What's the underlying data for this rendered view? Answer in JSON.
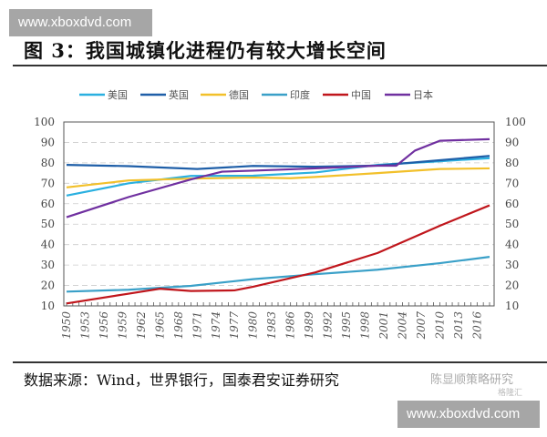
{
  "watermark_top": "www.xboxdvd.com",
  "watermark_bottom": "www.xboxdvd.com",
  "title": "图 3：我国城镇化进程仍有较大增长空间",
  "source": "数据来源：Wind，世界银行，国泰君安证券研究",
  "brand": "陈显顺策略研究",
  "brand2": "格隆汇",
  "chart_data": {
    "type": "line",
    "title": "",
    "xlabel": "",
    "ylabel": "",
    "ylim": [
      10,
      100
    ],
    "yticks": [
      10,
      20,
      30,
      40,
      50,
      60,
      70,
      80,
      90,
      100
    ],
    "xticks": [
      1950,
      1953,
      1956,
      1959,
      1962,
      1965,
      1968,
      1971,
      1974,
      1977,
      1980,
      1983,
      1986,
      1989,
      1992,
      1995,
      1998,
      2001,
      2004,
      2007,
      2010,
      2013,
      2016
    ],
    "xlim": [
      1950,
      2018
    ],
    "grid": "horizontal dashed",
    "legend": "top",
    "dual_y_axis": true,
    "series": [
      {
        "name": "美国",
        "color": "#2ab0e0",
        "x": [
          1950,
          1960,
          1970,
          1980,
          1990,
          2000,
          2010,
          2018
        ],
        "y": [
          64,
          70,
          73.6,
          73.7,
          75.3,
          79,
          80.8,
          82.3
        ]
      },
      {
        "name": "英国",
        "color": "#1f5fa8",
        "x": [
          1950,
          1960,
          1971,
          1980,
          1990,
          2000,
          2010,
          2018
        ],
        "y": [
          79,
          78.4,
          77,
          78.5,
          78.1,
          78.7,
          81.3,
          83.4
        ]
      },
      {
        "name": "德国",
        "color": "#f2c02a",
        "x": [
          1950,
          1960,
          1970,
          1980,
          1986,
          1990,
          2000,
          2010,
          2018
        ],
        "y": [
          68,
          71.4,
          72.3,
          72.8,
          72.5,
          73.1,
          75,
          77,
          77.3
        ]
      },
      {
        "name": "印度",
        "color": "#3aa0c8",
        "x": [
          1950,
          1960,
          1970,
          1980,
          1990,
          2000,
          2010,
          2018
        ],
        "y": [
          17,
          17.9,
          19.8,
          23.1,
          25.5,
          27.7,
          30.9,
          34
        ]
      },
      {
        "name": "中国",
        "color": "#c0161c",
        "x": [
          1950,
          1960,
          1965,
          1970,
          1977,
          1980,
          1990,
          2000,
          2010,
          2018
        ],
        "y": [
          11.2,
          16,
          18.4,
          17.3,
          17.6,
          19.4,
          26.4,
          35.9,
          49.2,
          59.2
        ]
      },
      {
        "name": "日本",
        "color": "#7030a0",
        "x": [
          1950,
          1960,
          1970,
          1975,
          1980,
          1990,
          2000,
          2003,
          2006,
          2010,
          2018
        ],
        "y": [
          53.4,
          63.3,
          71.9,
          75.7,
          76.2,
          77.3,
          78.6,
          78.6,
          86,
          90.8,
          91.6
        ]
      }
    ]
  }
}
